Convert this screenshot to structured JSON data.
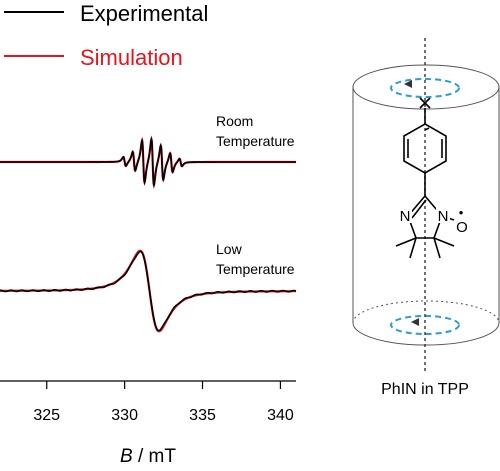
{
  "chart_data": {
    "type": "line",
    "legend": {
      "placement": "top-left",
      "entries": [
        {
          "label": "Experimental",
          "color": "#000000"
        },
        {
          "label": "Simulation",
          "color": "#e8141c"
        }
      ]
    },
    "xaxis": {
      "label_italic": "B",
      "label_rest": " / mT",
      "range": [
        322,
        341
      ],
      "ticks": [
        325,
        330,
        335,
        340
      ],
      "tick_labels": [
        "325",
        "330",
        "335",
        "340"
      ]
    },
    "y_axis_shown": false,
    "grid": false,
    "spectra": [
      {
        "label_line1": "Room",
        "label_line2": "Temperature",
        "baseline": 0,
        "peaks": [
          {
            "b": 330.0,
            "amp": 0.12,
            "w": 0.14
          },
          {
            "b": 330.6,
            "amp": 0.25,
            "w": 0.14
          },
          {
            "b": 331.2,
            "amp": 0.55,
            "w": 0.14
          },
          {
            "b": 331.8,
            "amp": 0.6,
            "w": 0.14
          },
          {
            "b": 332.4,
            "amp": 0.45,
            "w": 0.14
          },
          {
            "b": 333.0,
            "amp": 0.25,
            "w": 0.14
          },
          {
            "b": 333.6,
            "amp": 0.1,
            "w": 0.14
          }
        ]
      },
      {
        "label_line1": "Low",
        "label_line2": "Temperature",
        "baseline": 0,
        "broad": {
          "center": 331.6,
          "amp": 1.0,
          "w": 1.05
        }
      }
    ],
    "series": [
      {
        "name": "Experimental",
        "color": "#000000"
      },
      {
        "name": "Simulation",
        "color": "#e8141c"
      }
    ]
  },
  "inset": {
    "caption": "PhIN in TPP",
    "dot_label": "•",
    "atoms": {
      "n1": "N",
      "n2": "N",
      "o": "O"
    },
    "colors": {
      "dash_ring": "#2a9fd6",
      "outline": "#555555"
    }
  }
}
